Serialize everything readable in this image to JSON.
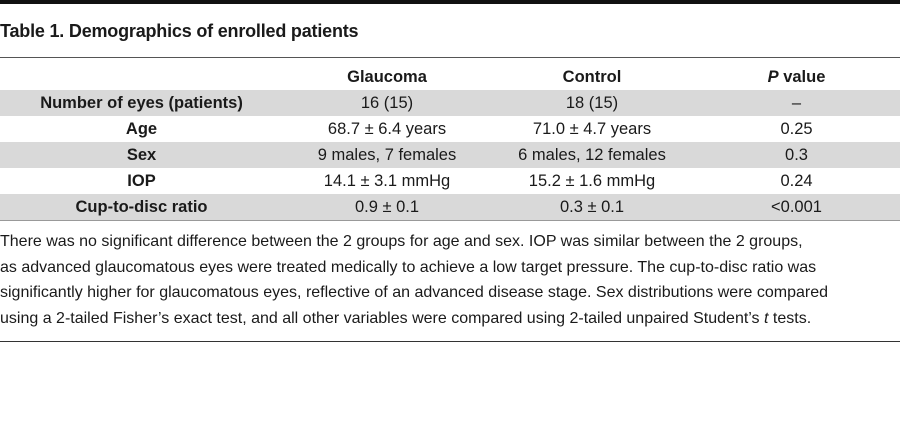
{
  "table": {
    "caption": "Table 1. Demographics of enrolled patients",
    "headers": {
      "label": "",
      "glaucoma": "Glaucoma",
      "control": "Control",
      "pvalue_p": "P",
      "pvalue_rest": " value"
    },
    "rows": [
      {
        "label": "Number of eyes (patients)",
        "glaucoma": "16 (15)",
        "control": "18 (15)",
        "pvalue": "–"
      },
      {
        "label": "Age",
        "glaucoma": "68.7 ± 6.4 years",
        "control": "71.0 ± 4.7 years",
        "pvalue": "0.25"
      },
      {
        "label": "Sex",
        "glaucoma": "9 males, 7 females",
        "control": "6 males, 12 females",
        "pvalue": "0.3"
      },
      {
        "label": "IOP",
        "glaucoma": "14.1 ± 3.1 mmHg",
        "control": "15.2 ± 1.6 mmHg",
        "pvalue": "0.24"
      },
      {
        "label": "Cup-to-disc ratio",
        "glaucoma": "0.9 ± 0.1",
        "control": "0.3 ± 0.1",
        "pvalue": "<0.001"
      }
    ],
    "footnote": {
      "line1": "There was no significant difference between the 2 groups for age and sex. IOP was similar between the 2 groups,",
      "line2": "as advanced glaucomatous eyes were treated medically to achieve a low target pressure. The cup-to-disc ratio was",
      "line3": "significantly higher for glaucomatous eyes, reflective of an advanced disease stage. Sex distributions were compared",
      "line4_a": "using a 2-tailed Fisher’s exact test, and all other variables were compared using 2-tailed unpaired Student’s ",
      "line4_t": "t",
      "line4_b": " tests."
    }
  }
}
